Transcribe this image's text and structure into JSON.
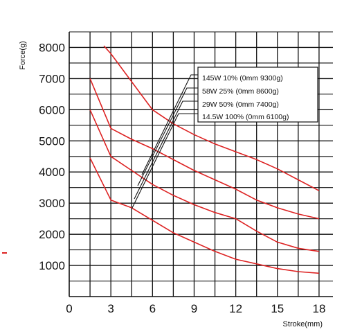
{
  "chart_data": {
    "type": "line",
    "title": "",
    "xlabel": "Stroke(mm)",
    "ylabel": "Force(g)",
    "xlim": [
      0,
      19
    ],
    "ylim": [
      0,
      8500
    ],
    "xticks": [
      0,
      3,
      6,
      9,
      12,
      15,
      18
    ],
    "yticks": [
      1000,
      2000,
      3000,
      4000,
      5000,
      6000,
      7000,
      8000
    ],
    "xgrid_step": 1.5,
    "ygrid_step": 500,
    "grid": true,
    "series_color": "#dd2222",
    "legend_position": "top-right",
    "series": [
      {
        "name": "145W 10% (0mm 9300g)",
        "x": [
          2.5,
          3,
          4.5,
          6,
          7.5,
          9,
          10.5,
          12,
          13.5,
          15,
          16.5,
          18
        ],
        "y": [
          8050,
          7800,
          6900,
          6000,
          5550,
          5200,
          4900,
          4650,
          4400,
          4100,
          3750,
          3400
        ]
      },
      {
        "name": "58W 25% (0mm 8600g)",
        "x": [
          1.5,
          3,
          4.5,
          6,
          7.5,
          9,
          10.5,
          12,
          13.5,
          15,
          16.5,
          18
        ],
        "y": [
          7000,
          5400,
          5050,
          4750,
          4400,
          4050,
          3750,
          3450,
          3100,
          2850,
          2650,
          2500
        ]
      },
      {
        "name": "29W 50% (0mm 7400g)",
        "x": [
          1.5,
          3,
          4.5,
          6,
          7.5,
          9,
          10.5,
          12,
          13.5,
          15,
          16.5,
          18
        ],
        "y": [
          6000,
          4500,
          4050,
          3600,
          3250,
          2950,
          2700,
          2500,
          2100,
          1750,
          1550,
          1450
        ]
      },
      {
        "name": "14.5W 100% (0mm 6100g)",
        "x": [
          1.5,
          3,
          4.5,
          6,
          7.5,
          9,
          10.5,
          12,
          13.5,
          15,
          16.5,
          18
        ],
        "y": [
          4450,
          3100,
          2850,
          2450,
          2050,
          1750,
          1450,
          1200,
          1050,
          900,
          800,
          750
        ]
      }
    ]
  }
}
